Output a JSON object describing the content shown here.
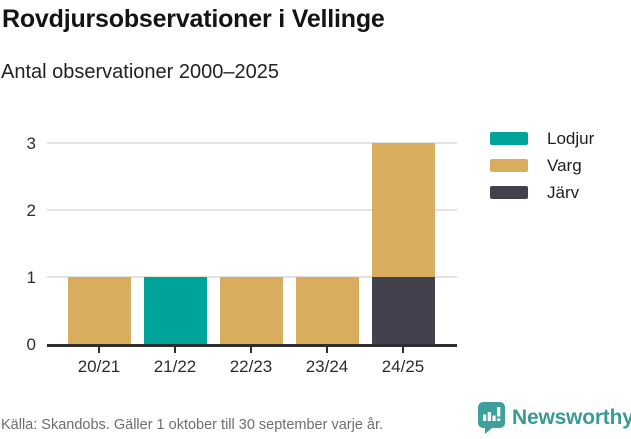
{
  "header": {
    "title": "Rovdjursobservationer i Vellinge",
    "subtitle": "Antal observationer 2000–2025"
  },
  "chart_data": {
    "type": "bar",
    "stacked": true,
    "title": "Rovdjursobservationer i Vellinge",
    "subtitle": "Antal observationer 2000–2025",
    "categories": [
      "20/21",
      "21/22",
      "22/23",
      "23/24",
      "24/25"
    ],
    "series": [
      {
        "name": "Lodjur",
        "color": "#00a39a",
        "values": [
          0,
          1,
          0,
          0,
          0
        ]
      },
      {
        "name": "Varg",
        "color": "#d9ad5e",
        "values": [
          1,
          0,
          1,
          1,
          2
        ]
      },
      {
        "name": "Järv",
        "color": "#42424f",
        "values": [
          0,
          0,
          0,
          0,
          1
        ]
      }
    ],
    "stack_bottom_to_top": [
      "Järv",
      "Varg",
      "Lodjur"
    ],
    "totals_per_category": [
      1,
      1,
      1,
      1,
      3
    ],
    "xlabel": "",
    "ylabel": "",
    "yticks": [
      0,
      1,
      2,
      3
    ],
    "ylim": [
      0,
      3
    ],
    "grid": true,
    "legend_position": "right"
  },
  "footer": {
    "source": "Källa: Skandobs. Gäller 1 oktober till 30 september varje år.",
    "brand_name": "Newsworthy"
  },
  "colors": {
    "axis": "#2e2e30",
    "grid": "#e3e3e3",
    "tick_text": "#2d2d2d",
    "muted_text": "#6d6d74",
    "brand_teal": "#3a9a94",
    "background": "#ffffff"
  }
}
